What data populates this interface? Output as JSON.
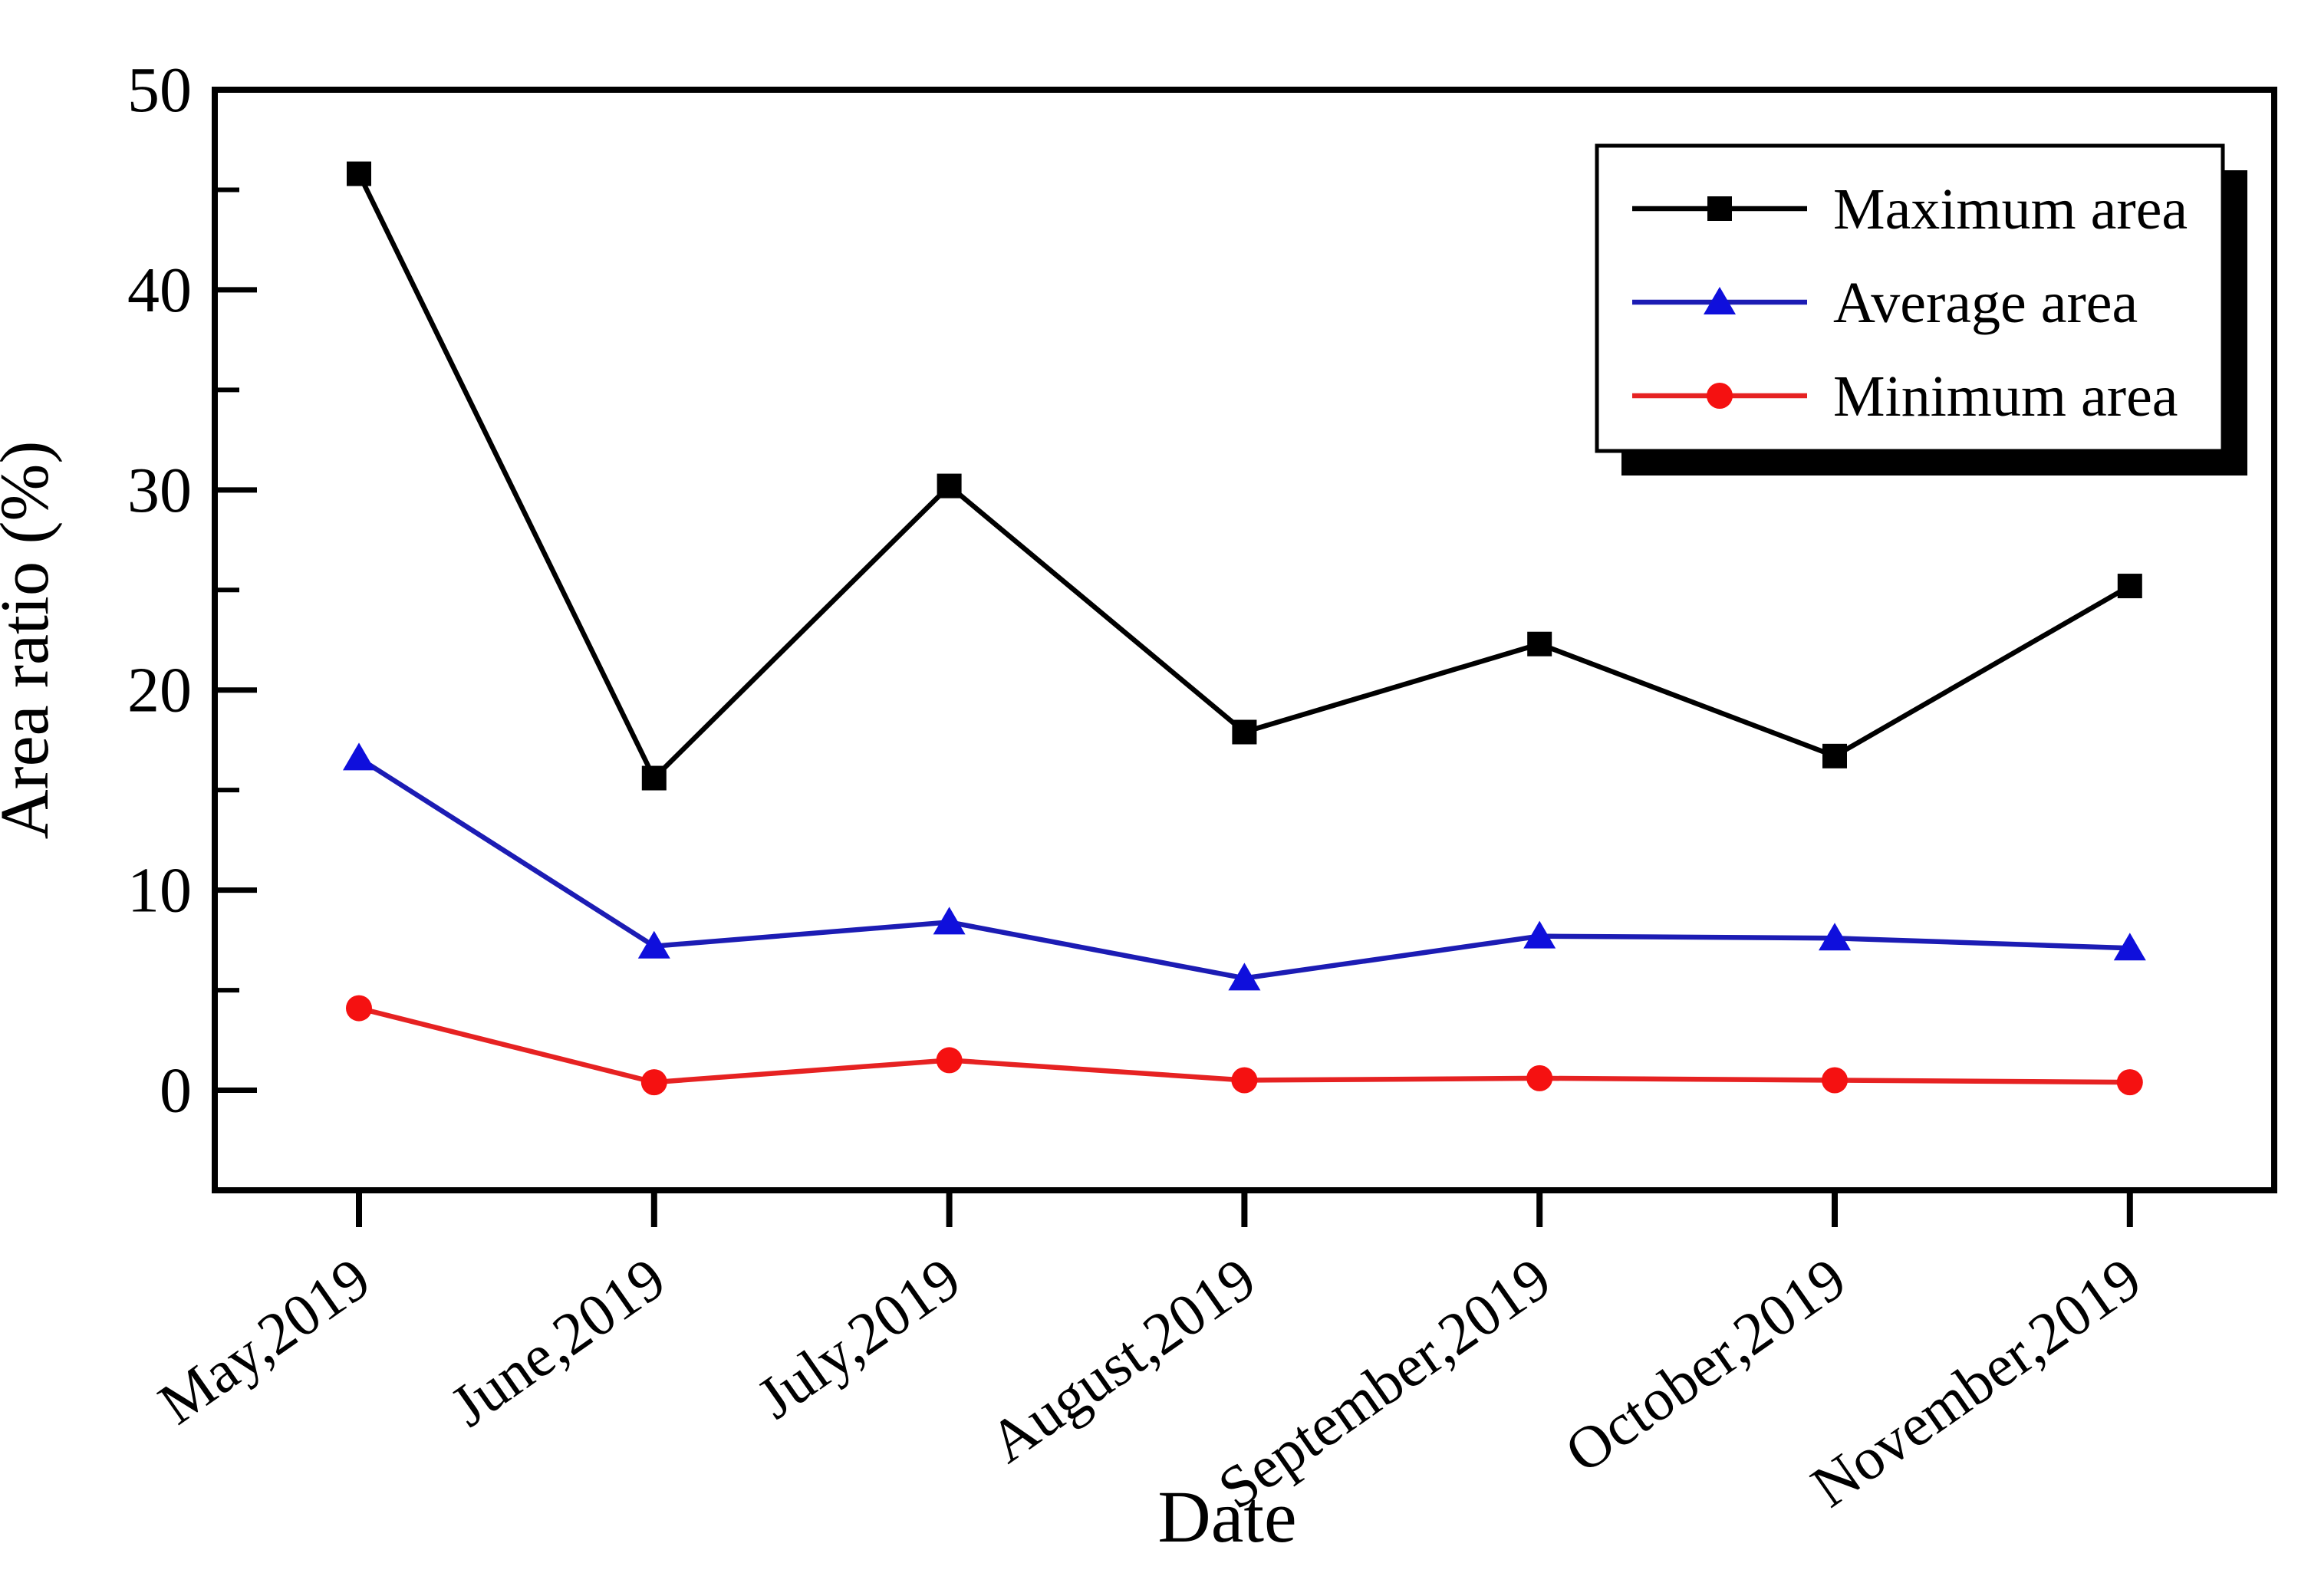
{
  "figure": {
    "background": "#ffffff",
    "axis_color": "#000000"
  },
  "chart_data": {
    "type": "line",
    "title": "",
    "xlabel": "Date",
    "ylabel": "Area ratio (%)",
    "categories": [
      "May,2019",
      "June,2019",
      "July,2019",
      "August,2019",
      "September,2019",
      "October,2019",
      "November,2019"
    ],
    "series": [
      {
        "name": "Maximum area",
        "marker": "square",
        "line_color": "#000000",
        "marker_color": "#000000",
        "values": [
          45.8,
          15.6,
          30.2,
          17.9,
          22.3,
          16.7,
          25.2
        ]
      },
      {
        "name": "Average area",
        "marker": "triangle",
        "line_color": "#1c1cb4",
        "marker_color": "#0f0fdc",
        "values": [
          16.6,
          7.2,
          8.4,
          5.6,
          7.7,
          7.6,
          7.1
        ]
      },
      {
        "name": "Minimum area",
        "marker": "circle",
        "line_color": "#e62222",
        "marker_color": "#f51111",
        "values": [
          4.1,
          0.4,
          1.5,
          0.5,
          0.6,
          0.5,
          0.4
        ]
      }
    ],
    "ylim": [
      -5,
      50
    ],
    "yticks_major": [
      0,
      10,
      20,
      30,
      40,
      50
    ],
    "ytick_labels": [
      "0",
      "10",
      "20",
      "30",
      "40",
      "50"
    ],
    "yticks_minor": [
      5,
      15,
      25,
      35,
      45
    ],
    "grid": "off",
    "legend_position": "top-right",
    "legend_shadow": true
  }
}
